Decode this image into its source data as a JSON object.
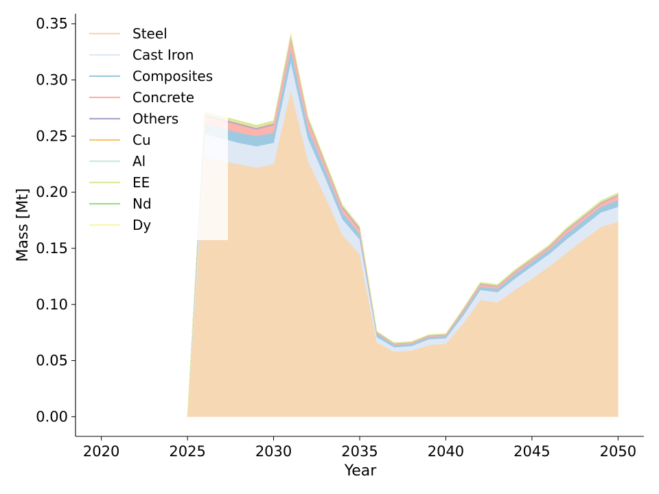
{
  "chart_data": {
    "type": "area",
    "stacked": true,
    "title": "",
    "xlabel": "Year",
    "ylabel": "Mass [Mt]",
    "xlim": [
      2018.5,
      2051.5
    ],
    "ylim": [
      -0.0175,
      0.359
    ],
    "xticks": [
      2020,
      2025,
      2030,
      2035,
      2040,
      2045,
      2050
    ],
    "yticks": [
      0.0,
      0.05,
      0.1,
      0.15,
      0.2,
      0.25,
      0.3,
      0.35
    ],
    "ytick_labels": [
      "0.00",
      "0.05",
      "0.10",
      "0.15",
      "0.20",
      "0.25",
      "0.30",
      "0.35"
    ],
    "grid": false,
    "legend_position": "top-left",
    "x": [
      2025,
      2026,
      2027,
      2028,
      2029,
      2030,
      2031,
      2032,
      2033,
      2034,
      2035,
      2036,
      2037,
      2038,
      2039,
      2040,
      2041,
      2042,
      2043,
      2044,
      2045,
      2046,
      2047,
      2048,
      2049,
      2050
    ],
    "series": [
      {
        "name": "Steel",
        "color": "#f7d8b4",
        "values": [
          0.0,
          0.232,
          0.228,
          0.225,
          0.222,
          0.225,
          0.291,
          0.228,
          0.196,
          0.162,
          0.145,
          0.066,
          0.058,
          0.059,
          0.064,
          0.065,
          0.083,
          0.104,
          0.102,
          0.113,
          0.123,
          0.134,
          0.146,
          0.158,
          0.169,
          0.174
        ]
      },
      {
        "name": "Cast Iron",
        "color": "#dfe9f6",
        "values": [
          0.0,
          0.02,
          0.02,
          0.019,
          0.019,
          0.019,
          0.025,
          0.02,
          0.017,
          0.014,
          0.013,
          0.005,
          0.004,
          0.004,
          0.005,
          0.005,
          0.007,
          0.009,
          0.009,
          0.01,
          0.011,
          0.011,
          0.012,
          0.012,
          0.013,
          0.013
        ]
      },
      {
        "name": "Composites",
        "color": "#9ecae1",
        "values": [
          0.0,
          0.009,
          0.009,
          0.009,
          0.009,
          0.009,
          0.012,
          0.009,
          0.007,
          0.006,
          0.005,
          0.003,
          0.002,
          0.002,
          0.002,
          0.002,
          0.003,
          0.003,
          0.003,
          0.004,
          0.004,
          0.004,
          0.005,
          0.005,
          0.005,
          0.006
        ]
      },
      {
        "name": "Concrete",
        "color": "#fbb4ae",
        "values": [
          0.0,
          0.007,
          0.007,
          0.007,
          0.006,
          0.007,
          0.009,
          0.007,
          0.005,
          0.004,
          0.004,
          0.001,
          0.001,
          0.001,
          0.001,
          0.001,
          0.002,
          0.002,
          0.002,
          0.002,
          0.002,
          0.002,
          0.003,
          0.003,
          0.003,
          0.004
        ]
      },
      {
        "name": "Others",
        "color": "#a9a5cd",
        "values": [
          0.0,
          0.001,
          0.001,
          0.001,
          0.001,
          0.001,
          0.001,
          0.001,
          0.001,
          0.001,
          0.001,
          0.0003,
          0.0002,
          0.0002,
          0.0003,
          0.0003,
          0.0004,
          0.0005,
          0.0005,
          0.0005,
          0.0005,
          0.0006,
          0.0006,
          0.0006,
          0.0007,
          0.0007
        ]
      },
      {
        "name": "Cu",
        "color": "#fdc46b",
        "values": [
          0.0,
          0.0008,
          0.0008,
          0.0008,
          0.0008,
          0.0008,
          0.001,
          0.0008,
          0.0007,
          0.0006,
          0.0005,
          0.0002,
          0.0002,
          0.0002,
          0.0002,
          0.0002,
          0.0003,
          0.0004,
          0.0004,
          0.0004,
          0.0004,
          0.0005,
          0.0005,
          0.0005,
          0.0005,
          0.0005
        ]
      },
      {
        "name": "Al",
        "color": "#c9ebe2",
        "values": [
          0.0,
          0.0006,
          0.0006,
          0.0006,
          0.0006,
          0.0006,
          0.0008,
          0.0006,
          0.0005,
          0.0004,
          0.0004,
          0.0002,
          0.0002,
          0.0002,
          0.0002,
          0.0002,
          0.0002,
          0.0003,
          0.0003,
          0.0003,
          0.0003,
          0.0003,
          0.0004,
          0.0004,
          0.0004,
          0.0004
        ]
      },
      {
        "name": "EE",
        "color": "#dceb9a",
        "values": [
          0.0,
          0.001,
          0.001,
          0.001,
          0.001,
          0.001,
          0.0012,
          0.001,
          0.0008,
          0.0007,
          0.0006,
          0.0003,
          0.0003,
          0.0003,
          0.0003,
          0.0003,
          0.0004,
          0.0005,
          0.0005,
          0.0005,
          0.0006,
          0.0006,
          0.0006,
          0.0007,
          0.0007,
          0.0008
        ]
      },
      {
        "name": "Nd",
        "color": "#a6da8d",
        "values": [
          0.0,
          0.0003,
          0.0003,
          0.0003,
          0.0003,
          0.0003,
          0.0004,
          0.0003,
          0.0003,
          0.0002,
          0.0002,
          0.0001,
          0.0001,
          0.0001,
          0.0001,
          0.0001,
          0.0001,
          0.0002,
          0.0002,
          0.0002,
          0.0002,
          0.0002,
          0.0002,
          0.0002,
          0.0002,
          0.0002
        ]
      },
      {
        "name": "Dy",
        "color": "#fcf5a8",
        "values": [
          0.0,
          0.0002,
          0.0002,
          0.0002,
          0.0002,
          0.0002,
          0.0003,
          0.0002,
          0.0002,
          0.0002,
          0.0001,
          0.0001,
          0.0001,
          0.0001,
          0.0001,
          0.0001,
          0.0001,
          0.0001,
          0.0001,
          0.0001,
          0.0001,
          0.0001,
          0.0001,
          0.0001,
          0.0001,
          0.0001
        ]
      }
    ]
  }
}
